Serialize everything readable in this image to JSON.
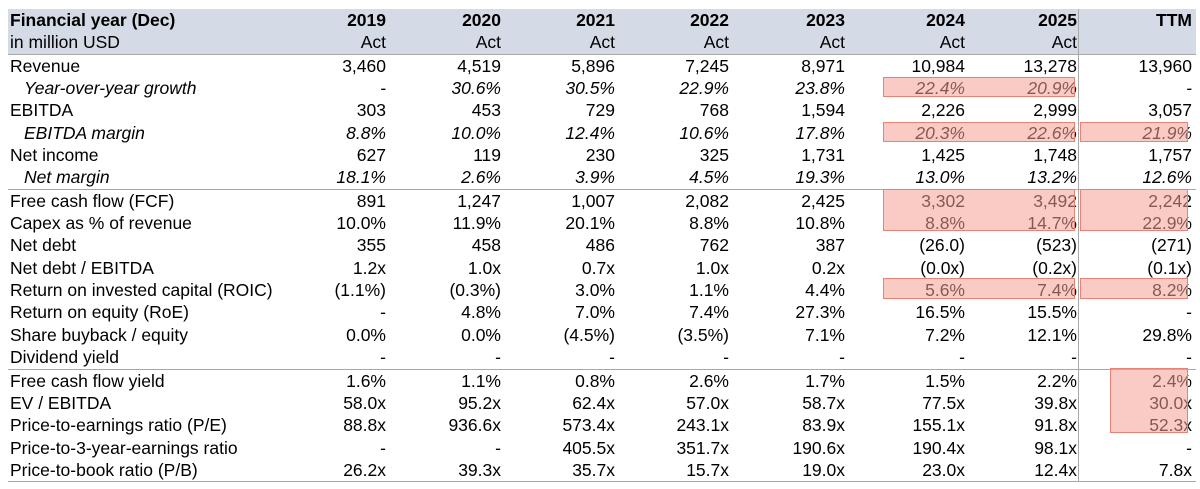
{
  "table": {
    "header_title": "Financial year (Dec)",
    "header_subtitle": "in million USD",
    "years": [
      "2019",
      "2020",
      "2021",
      "2022",
      "2023",
      "2024",
      "2025",
      "TTM"
    ],
    "act_labels": [
      "Act",
      "Act",
      "Act",
      "Act",
      "Act",
      "Act",
      "Act",
      ""
    ],
    "rows": [
      {
        "label": "Revenue",
        "style": "normal",
        "values": [
          "3,460",
          "4,519",
          "5,896",
          "7,245",
          "8,971",
          "10,984",
          "13,278",
          "13,960"
        ]
      },
      {
        "label": "Year-over-year growth",
        "style": "italic",
        "values": [
          "-",
          "30.6%",
          "30.5%",
          "22.9%",
          "23.8%",
          "22.4%",
          "20.9%",
          "-"
        ]
      },
      {
        "label": "EBITDA",
        "style": "normal",
        "values": [
          "303",
          "453",
          "729",
          "768",
          "1,594",
          "2,226",
          "2,999",
          "3,057"
        ]
      },
      {
        "label": "EBITDA margin",
        "style": "italic",
        "values": [
          "8.8%",
          "10.0%",
          "12.4%",
          "10.6%",
          "17.8%",
          "20.3%",
          "22.6%",
          "21.9%"
        ]
      },
      {
        "label": "Net income",
        "style": "normal",
        "values": [
          "627",
          "119",
          "230",
          "325",
          "1,731",
          "1,425",
          "1,748",
          "1,757"
        ]
      },
      {
        "label": "Net margin",
        "style": "italic",
        "values": [
          "18.1%",
          "2.6%",
          "3.9%",
          "4.5%",
          "19.3%",
          "13.0%",
          "13.2%",
          "12.6%"
        ]
      },
      {
        "label": "Free cash flow (FCF)",
        "style": "normal",
        "values": [
          "891",
          "1,247",
          "1,007",
          "2,082",
          "2,425",
          "3,302",
          "3,492",
          "2,242"
        ]
      },
      {
        "label": "Capex as % of revenue",
        "style": "normal",
        "values": [
          "10.0%",
          "11.9%",
          "20.1%",
          "8.8%",
          "10.8%",
          "8.8%",
          "14.7%",
          "22.9%"
        ]
      },
      {
        "label": "Net debt",
        "style": "normal",
        "values": [
          "355",
          "458",
          "486",
          "762",
          "387",
          "(26.0)",
          "(523)",
          "(271)"
        ]
      },
      {
        "label": "Net debt / EBITDA",
        "style": "normal",
        "values": [
          "1.2x",
          "1.0x",
          "0.7x",
          "1.0x",
          "0.2x",
          "(0.0x)",
          "(0.2x)",
          "(0.1x)"
        ]
      },
      {
        "label": "Return on invested capital (ROIC)",
        "style": "normal",
        "values": [
          "(1.1%)",
          "(0.3%)",
          "3.0%",
          "1.1%",
          "4.4%",
          "5.6%",
          "7.4%",
          "8.2%"
        ]
      },
      {
        "label": "Return on equity (RoE)",
        "style": "normal",
        "values": [
          "-",
          "4.8%",
          "7.0%",
          "7.4%",
          "27.3%",
          "16.5%",
          "15.5%",
          "-"
        ]
      },
      {
        "label": "Share buyback / equity",
        "style": "normal",
        "values": [
          "0.0%",
          "0.0%",
          "(4.5%)",
          "(3.5%)",
          "7.1%",
          "7.2%",
          "12.1%",
          "29.8%"
        ]
      },
      {
        "label": "Dividend yield",
        "style": "normal",
        "values": [
          "-",
          "-",
          "-",
          "-",
          "-",
          "-",
          "-",
          "-"
        ]
      },
      {
        "label": "Free cash flow yield",
        "style": "normal",
        "values": [
          "1.6%",
          "1.1%",
          "0.8%",
          "2.6%",
          "1.7%",
          "1.5%",
          "2.2%",
          "2.4%"
        ]
      },
      {
        "label": "EV / EBITDA",
        "style": "normal",
        "values": [
          "58.0x",
          "95.2x",
          "62.4x",
          "57.0x",
          "58.7x",
          "77.5x",
          "39.8x",
          "30.0x"
        ]
      },
      {
        "label": "Price-to-earnings ratio (P/E)",
        "style": "normal",
        "values": [
          "88.8x",
          "936.6x",
          "573.4x",
          "243.1x",
          "83.9x",
          "155.1x",
          "91.8x",
          "52.3x"
        ]
      },
      {
        "label": "Price-to-3-year-earnings ratio",
        "style": "normal",
        "values": [
          "-",
          "-",
          "405.5x",
          "351.7x",
          "190.6x",
          "190.4x",
          "98.1x",
          "-"
        ]
      },
      {
        "label": "Price-to-book ratio (P/B)",
        "style": "normal",
        "values": [
          "26.2x",
          "39.3x",
          "35.7x",
          "15.7x",
          "19.0x",
          "23.0x",
          "12.4x",
          "7.8x"
        ]
      }
    ]
  },
  "colors": {
    "header_bg": "#d5dbe6",
    "highlight": "#f6a096",
    "rule": "#a8a8a8"
  }
}
